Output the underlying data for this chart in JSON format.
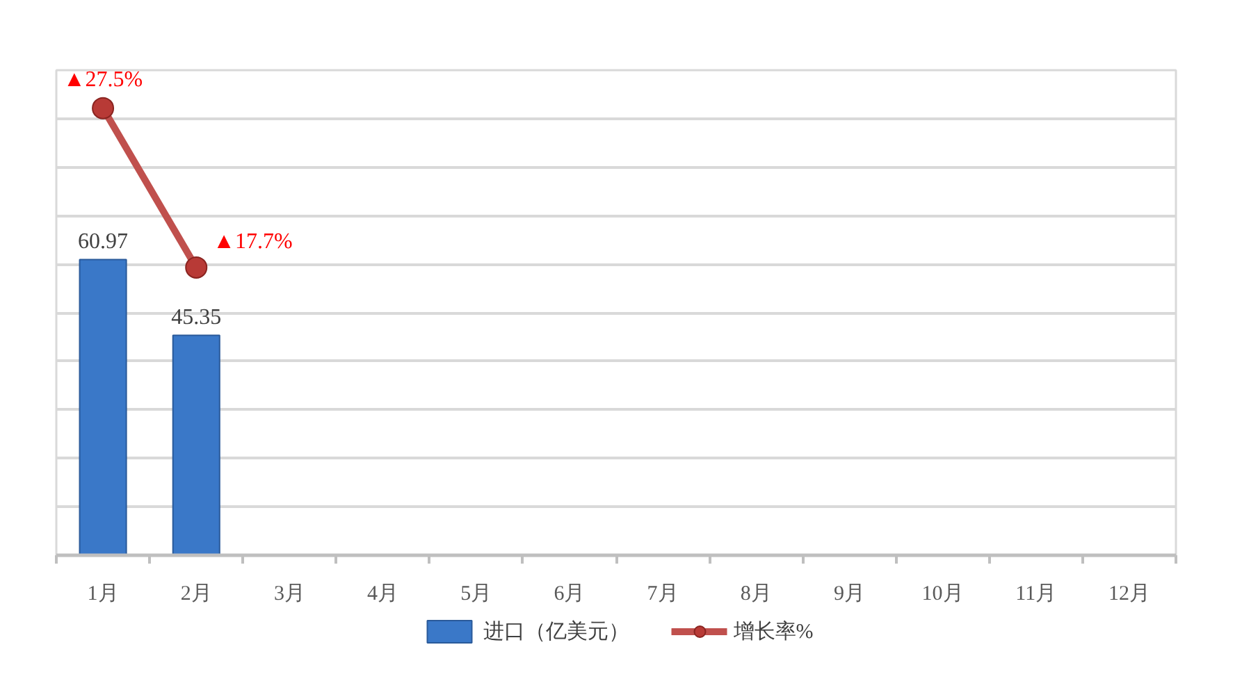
{
  "chart_data": {
    "type": "bar",
    "categories": [
      "1月",
      "2月",
      "3月",
      "4月",
      "5月",
      "6月",
      "7月",
      "8月",
      "9月",
      "10月",
      "11月",
      "12月"
    ],
    "series": [
      {
        "name": "进口（亿美元）",
        "color": "#3a78c8",
        "values": [
          60.97,
          45.35,
          null,
          null,
          null,
          null,
          null,
          null,
          null,
          null,
          null,
          null
        ],
        "value_labels": [
          "60.97",
          "45.35",
          null,
          null,
          null,
          null,
          null,
          null,
          null,
          null,
          null,
          null
        ]
      },
      {
        "name": "增长率%",
        "type": "line",
        "axis": "y2",
        "color": "#c0504d",
        "marker": "circle",
        "values": [
          27.5,
          17.7,
          null,
          null,
          null,
          null,
          null,
          null,
          null,
          null,
          null,
          null
        ],
        "value_labels": [
          "▲27.5%",
          "▲17.7%",
          null,
          null,
          null,
          null,
          null,
          null,
          null,
          null,
          null,
          null
        ]
      }
    ],
    "ylim": [
      0,
      100
    ],
    "yticks": [
      {
        "value": 0,
        "label": null
      },
      {
        "value": 10,
        "label": null
      },
      {
        "value": 20,
        "label": null
      },
      {
        "value": 30,
        "label": null
      },
      {
        "value": 40,
        "label": null
      },
      {
        "value": 50,
        "label": null
      },
      {
        "value": 60,
        "label": null
      },
      {
        "value": 70,
        "label": null
      },
      {
        "value": 80,
        "label": null
      },
      {
        "value": 90,
        "label": null
      },
      {
        "value": 100,
        "label": null
      }
    ],
    "grid": "y",
    "legend": "bottom",
    "tick_labels": "x"
  }
}
